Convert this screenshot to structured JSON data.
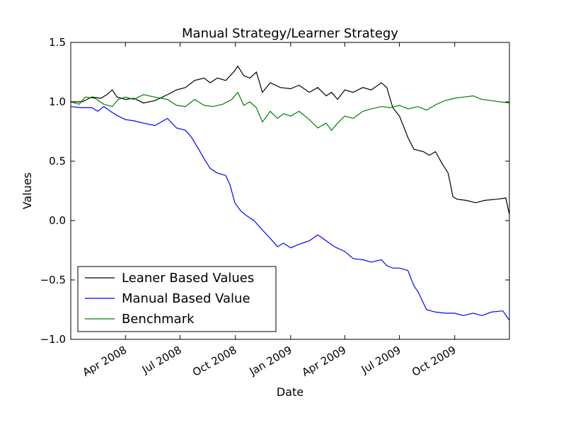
{
  "chart_data": {
    "type": "line",
    "title": "Manual Strategy/Learner Strategy",
    "xlabel": "Date",
    "ylabel": "Values",
    "ylim": [
      -1.0,
      1.5
    ],
    "xlim": [
      "2008-01-01",
      "2009-12-31"
    ],
    "yticks": [
      -1.0,
      -0.5,
      0.0,
      0.5,
      1.0,
      1.5
    ],
    "ytick_labels": [
      "−1.0",
      "−0.5",
      "0.0",
      "0.5",
      "1.0",
      "1.5"
    ],
    "xticks": [
      {
        "date": "2008-04-01",
        "label": "Apr 2008"
      },
      {
        "date": "2008-07-01",
        "label": "Jul 2008"
      },
      {
        "date": "2008-10-01",
        "label": "Oct 2008"
      },
      {
        "date": "2009-01-01",
        "label": "Jan 2009"
      },
      {
        "date": "2009-04-01",
        "label": "Apr 2009"
      },
      {
        "date": "2009-07-01",
        "label": "Jul 2009"
      },
      {
        "date": "2009-10-01",
        "label": "Oct 2009"
      }
    ],
    "grid": false,
    "legend_position": "lower-left",
    "series": [
      {
        "name": "Leaner Based Values",
        "color": "#000000",
        "points": [
          [
            "2008-01-01",
            1.0
          ],
          [
            "2008-01-20",
            1.0
          ],
          [
            "2008-02-05",
            1.04
          ],
          [
            "2008-02-20",
            1.03
          ],
          [
            "2008-03-01",
            1.06
          ],
          [
            "2008-03-10",
            1.1
          ],
          [
            "2008-03-18",
            1.04
          ],
          [
            "2008-04-01",
            1.02
          ],
          [
            "2008-04-15",
            1.03
          ],
          [
            "2008-05-01",
            0.99
          ],
          [
            "2008-05-20",
            1.01
          ],
          [
            "2008-06-10",
            1.06
          ],
          [
            "2008-06-25",
            1.1
          ],
          [
            "2008-07-10",
            1.12
          ],
          [
            "2008-07-25",
            1.18
          ],
          [
            "2008-08-10",
            1.2
          ],
          [
            "2008-08-20",
            1.16
          ],
          [
            "2008-09-01",
            1.2
          ],
          [
            "2008-09-15",
            1.18
          ],
          [
            "2008-09-28",
            1.25
          ],
          [
            "2008-10-05",
            1.3
          ],
          [
            "2008-10-15",
            1.22
          ],
          [
            "2008-10-25",
            1.2
          ],
          [
            "2008-11-05",
            1.25
          ],
          [
            "2008-11-15",
            1.08
          ],
          [
            "2008-11-28",
            1.16
          ],
          [
            "2008-12-15",
            1.12
          ],
          [
            "2009-01-01",
            1.11
          ],
          [
            "2009-01-15",
            1.14
          ],
          [
            "2009-02-01",
            1.08
          ],
          [
            "2009-02-15",
            1.12
          ],
          [
            "2009-03-01",
            1.05
          ],
          [
            "2009-03-10",
            1.08
          ],
          [
            "2009-03-20",
            1.02
          ],
          [
            "2009-04-01",
            1.1
          ],
          [
            "2009-04-15",
            1.08
          ],
          [
            "2009-05-01",
            1.12
          ],
          [
            "2009-05-15",
            1.1
          ],
          [
            "2009-06-01",
            1.16
          ],
          [
            "2009-06-10",
            1.12
          ],
          [
            "2009-06-20",
            0.95
          ],
          [
            "2009-07-01",
            0.88
          ],
          [
            "2009-07-15",
            0.7
          ],
          [
            "2009-07-25",
            0.6
          ],
          [
            "2009-08-10",
            0.58
          ],
          [
            "2009-08-20",
            0.55
          ],
          [
            "2009-08-30",
            0.58
          ],
          [
            "2009-09-10",
            0.48
          ],
          [
            "2009-09-20",
            0.4
          ],
          [
            "2009-09-28",
            0.2
          ],
          [
            "2009-10-05",
            0.18
          ],
          [
            "2009-10-20",
            0.17
          ],
          [
            "2009-11-05",
            0.15
          ],
          [
            "2009-11-20",
            0.17
          ],
          [
            "2009-12-10",
            0.18
          ],
          [
            "2009-12-25",
            0.19
          ],
          [
            "2009-12-31",
            0.05
          ]
        ]
      },
      {
        "name": "Manual Based Value",
        "color": "#0000ff",
        "points": [
          [
            "2008-01-01",
            0.96
          ],
          [
            "2008-01-20",
            0.95
          ],
          [
            "2008-02-05",
            0.95
          ],
          [
            "2008-02-15",
            0.92
          ],
          [
            "2008-02-25",
            0.96
          ],
          [
            "2008-03-10",
            0.91
          ],
          [
            "2008-03-20",
            0.88
          ],
          [
            "2008-04-01",
            0.85
          ],
          [
            "2008-04-15",
            0.84
          ],
          [
            "2008-05-01",
            0.82
          ],
          [
            "2008-05-20",
            0.8
          ],
          [
            "2008-06-10",
            0.86
          ],
          [
            "2008-06-25",
            0.78
          ],
          [
            "2008-07-10",
            0.76
          ],
          [
            "2008-07-20",
            0.7
          ],
          [
            "2008-08-01",
            0.6
          ],
          [
            "2008-08-10",
            0.52
          ],
          [
            "2008-08-20",
            0.44
          ],
          [
            "2008-09-01",
            0.4
          ],
          [
            "2008-09-15",
            0.38
          ],
          [
            "2008-09-22",
            0.3
          ],
          [
            "2008-09-30",
            0.15
          ],
          [
            "2008-10-10",
            0.08
          ],
          [
            "2008-10-20",
            0.04
          ],
          [
            "2008-11-01",
            0.0
          ],
          [
            "2008-11-15",
            -0.08
          ],
          [
            "2008-11-28",
            -0.15
          ],
          [
            "2008-12-10",
            -0.22
          ],
          [
            "2008-12-20",
            -0.19
          ],
          [
            "2009-01-01",
            -0.23
          ],
          [
            "2009-01-15",
            -0.2
          ],
          [
            "2009-02-01",
            -0.17
          ],
          [
            "2009-02-15",
            -0.12
          ],
          [
            "2009-03-01",
            -0.17
          ],
          [
            "2009-03-15",
            -0.22
          ],
          [
            "2009-04-01",
            -0.26
          ],
          [
            "2009-04-15",
            -0.32
          ],
          [
            "2009-05-01",
            -0.33
          ],
          [
            "2009-05-15",
            -0.35
          ],
          [
            "2009-06-01",
            -0.33
          ],
          [
            "2009-06-10",
            -0.38
          ],
          [
            "2009-06-20",
            -0.4
          ],
          [
            "2009-07-01",
            -0.4
          ],
          [
            "2009-07-15",
            -0.42
          ],
          [
            "2009-07-25",
            -0.55
          ],
          [
            "2009-08-01",
            -0.6
          ],
          [
            "2009-08-15",
            -0.75
          ],
          [
            "2009-08-30",
            -0.77
          ],
          [
            "2009-09-15",
            -0.78
          ],
          [
            "2009-10-01",
            -0.78
          ],
          [
            "2009-10-15",
            -0.8
          ],
          [
            "2009-11-01",
            -0.78
          ],
          [
            "2009-11-15",
            -0.8
          ],
          [
            "2009-12-01",
            -0.77
          ],
          [
            "2009-12-20",
            -0.76
          ],
          [
            "2009-12-31",
            -0.84
          ]
        ]
      },
      {
        "name": "Benchmark",
        "color": "#008000",
        "points": [
          [
            "2008-01-01",
            1.0
          ],
          [
            "2008-01-15",
            0.98
          ],
          [
            "2008-01-25",
            1.04
          ],
          [
            "2008-02-10",
            1.03
          ],
          [
            "2008-02-25",
            0.98
          ],
          [
            "2008-03-10",
            0.96
          ],
          [
            "2008-03-20",
            1.02
          ],
          [
            "2008-04-01",
            1.04
          ],
          [
            "2008-04-15",
            1.02
          ],
          [
            "2008-05-01",
            1.06
          ],
          [
            "2008-05-20",
            1.04
          ],
          [
            "2008-06-10",
            1.02
          ],
          [
            "2008-06-25",
            0.97
          ],
          [
            "2008-07-10",
            0.96
          ],
          [
            "2008-07-25",
            1.02
          ],
          [
            "2008-08-10",
            0.97
          ],
          [
            "2008-08-25",
            0.96
          ],
          [
            "2008-09-10",
            0.98
          ],
          [
            "2008-09-25",
            1.02
          ],
          [
            "2008-10-05",
            1.08
          ],
          [
            "2008-10-15",
            0.97
          ],
          [
            "2008-10-25",
            1.0
          ],
          [
            "2008-11-05",
            0.95
          ],
          [
            "2008-11-15",
            0.83
          ],
          [
            "2008-11-28",
            0.92
          ],
          [
            "2008-12-10",
            0.86
          ],
          [
            "2008-12-20",
            0.9
          ],
          [
            "2009-01-01",
            0.88
          ],
          [
            "2009-01-15",
            0.92
          ],
          [
            "2009-02-01",
            0.85
          ],
          [
            "2009-02-15",
            0.78
          ],
          [
            "2009-03-01",
            0.82
          ],
          [
            "2009-03-10",
            0.76
          ],
          [
            "2009-03-20",
            0.82
          ],
          [
            "2009-04-01",
            0.88
          ],
          [
            "2009-04-15",
            0.86
          ],
          [
            "2009-05-01",
            0.92
          ],
          [
            "2009-05-15",
            0.94
          ],
          [
            "2009-06-01",
            0.96
          ],
          [
            "2009-06-15",
            0.95
          ],
          [
            "2009-07-01",
            0.97
          ],
          [
            "2009-07-15",
            0.94
          ],
          [
            "2009-08-01",
            0.96
          ],
          [
            "2009-08-15",
            0.93
          ],
          [
            "2009-09-01",
            0.98
          ],
          [
            "2009-09-15",
            1.01
          ],
          [
            "2009-10-01",
            1.03
          ],
          [
            "2009-10-15",
            1.04
          ],
          [
            "2009-11-01",
            1.05
          ],
          [
            "2009-11-15",
            1.02
          ],
          [
            "2009-12-01",
            1.01
          ],
          [
            "2009-12-15",
            1.0
          ],
          [
            "2009-12-31",
            0.99
          ]
        ]
      }
    ]
  }
}
